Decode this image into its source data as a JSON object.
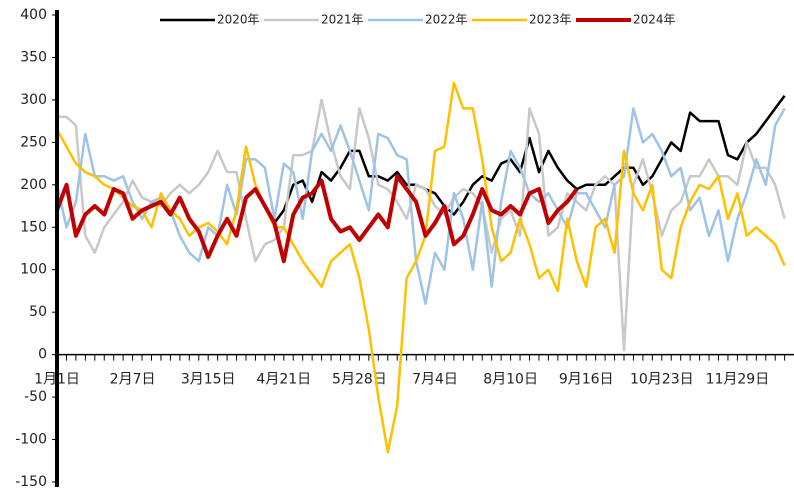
{
  "chart_data": {
    "type": "line",
    "categories": [
      "1月1日",
      null,
      null,
      null,
      null,
      null,
      null,
      null,
      "2月7日",
      null,
      null,
      null,
      null,
      null,
      null,
      null,
      "3月15日",
      null,
      null,
      null,
      null,
      null,
      null,
      null,
      "4月21日",
      null,
      null,
      null,
      null,
      null,
      null,
      null,
      "5月28日",
      null,
      null,
      null,
      null,
      null,
      null,
      null,
      "7月4日",
      null,
      null,
      null,
      null,
      null,
      null,
      null,
      "8月10日",
      null,
      null,
      null,
      null,
      null,
      null,
      null,
      "9月16日",
      null,
      null,
      null,
      null,
      null,
      null,
      null,
      "10月23日",
      null,
      null,
      null,
      null,
      null,
      null,
      null,
      "11月29日",
      null,
      null,
      null,
      null,
      null
    ],
    "ylim": [
      -150,
      400
    ],
    "yticks": [
      -150,
      -100,
      -50,
      0,
      50,
      100,
      150,
      200,
      250,
      300,
      350,
      400
    ],
    "legend": "top",
    "series": [
      {
        "name": "2020年",
        "color": "#000000",
        "width": 2.5,
        "values": [
          null,
          null,
          null,
          null,
          null,
          null,
          null,
          null,
          null,
          null,
          null,
          null,
          null,
          null,
          null,
          null,
          null,
          null,
          null,
          null,
          null,
          null,
          null,
          155,
          170,
          200,
          205,
          180,
          215,
          205,
          220,
          240,
          240,
          210,
          210,
          205,
          215,
          200,
          200,
          195,
          190,
          175,
          165,
          180,
          200,
          210,
          205,
          225,
          230,
          215,
          255,
          215,
          240,
          220,
          205,
          195,
          200,
          200,
          200,
          210,
          220,
          220,
          200,
          210,
          230,
          250,
          240,
          285,
          275,
          275,
          275,
          235,
          230,
          250,
          260,
          275,
          290,
          305
        ]
      },
      {
        "name": "2021年",
        "color": "#c8c8c8",
        "width": 2.5,
        "values": [
          280,
          280,
          270,
          140,
          120,
          150,
          165,
          180,
          205,
          185,
          180,
          175,
          190,
          200,
          190,
          200,
          215,
          240,
          215,
          215,
          160,
          110,
          130,
          135,
          150,
          235,
          235,
          240,
          300,
          250,
          210,
          195,
          290,
          255,
          200,
          195,
          180,
          160,
          200,
          195,
          175,
          165,
          185,
          195,
          190,
          175,
          120,
          160,
          170,
          140,
          290,
          260,
          140,
          150,
          190,
          180,
          170,
          200,
          210,
          200,
          5,
          200,
          230,
          190,
          140,
          170,
          180,
          210,
          210,
          230,
          210,
          210,
          200,
          250,
          220,
          220,
          200,
          160
        ]
      },
      {
        "name": "2022年",
        "color": "#9dc3e6",
        "width": 2.5,
        "values": [
          200,
          150,
          180,
          260,
          210,
          210,
          205,
          210,
          180,
          160,
          180,
          185,
          170,
          140,
          120,
          110,
          150,
          140,
          200,
          165,
          230,
          230,
          220,
          160,
          225,
          215,
          160,
          240,
          260,
          240,
          270,
          240,
          205,
          170,
          260,
          255,
          235,
          230,
          110,
          60,
          120,
          100,
          190,
          160,
          100,
          180,
          80,
          180,
          240,
          220,
          190,
          180,
          190,
          170,
          150,
          190,
          190,
          170,
          150,
          200,
          210,
          290,
          250,
          260,
          240,
          210,
          220,
          170,
          185,
          140,
          170,
          110,
          160,
          190,
          230,
          200,
          270,
          290
        ]
      },
      {
        "name": "2023年",
        "color": "#ffc000",
        "width": 2.5,
        "values": [
          265,
          245,
          225,
          215,
          210,
          200,
          195,
          185,
          175,
          170,
          150,
          190,
          170,
          160,
          140,
          150,
          155,
          145,
          130,
          170,
          245,
          200,
          175,
          150,
          150,
          130,
          110,
          95,
          80,
          110,
          120,
          130,
          90,
          30,
          -50,
          -115,
          -60,
          90,
          110,
          140,
          240,
          245,
          320,
          290,
          290,
          230,
          150,
          110,
          120,
          160,
          130,
          90,
          100,
          75,
          160,
          110,
          80,
          150,
          160,
          120,
          240,
          190,
          170,
          200,
          100,
          90,
          150,
          180,
          200,
          195,
          210,
          160,
          190,
          140,
          150,
          140,
          130,
          105
        ]
      },
      {
        "name": "2024年",
        "color": "#c00000",
        "width": 4,
        "values": [
          170,
          200,
          140,
          165,
          175,
          165,
          195,
          190,
          160,
          170,
          175,
          180,
          165,
          185,
          160,
          145,
          115,
          140,
          160,
          140,
          185,
          195,
          175,
          155,
          110,
          165,
          185,
          190,
          205,
          160,
          145,
          150,
          135,
          150,
          165,
          150,
          210,
          195,
          180,
          140,
          155,
          175,
          130,
          140,
          165,
          195,
          170,
          165,
          175,
          165,
          190,
          195,
          155,
          170,
          180,
          195,
          null,
          null,
          null,
          null,
          null,
          null,
          null,
          null,
          null,
          null,
          null,
          null,
          null,
          null,
          null,
          null,
          null,
          null,
          null,
          null,
          null,
          null
        ]
      }
    ]
  }
}
